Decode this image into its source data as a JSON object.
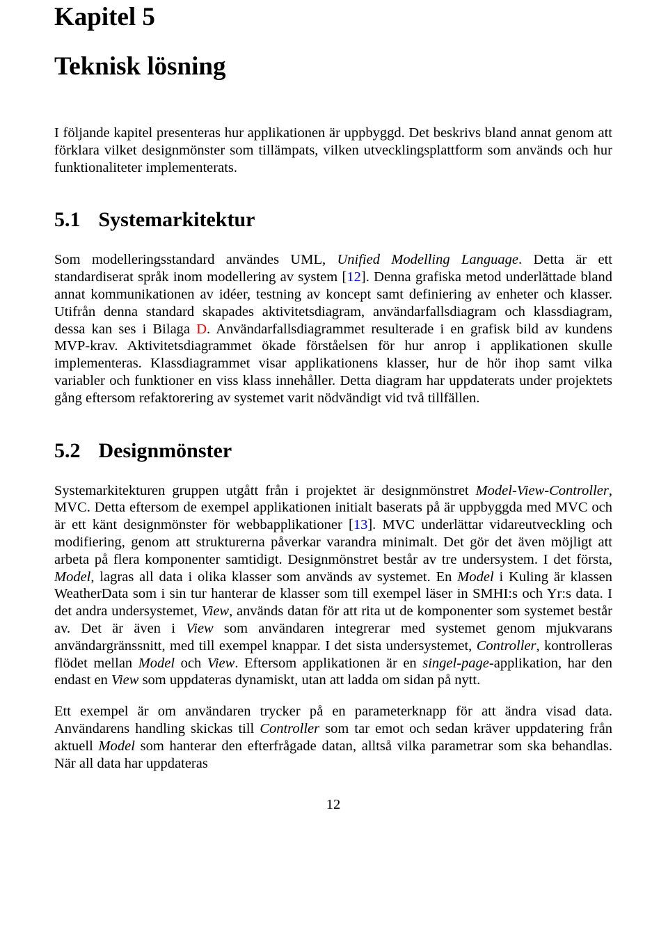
{
  "chapter": {
    "label": "Kapitel 5",
    "title": "Teknisk lösning"
  },
  "intro": {
    "pre": "I följande kapitel presenteras hur applikationen är uppbyggd. Det beskrivs bland annat genom att förklara vilket designmönster som tillämpats, vilken utvecklingsplattform som används och hur funktionaliteter implementerats."
  },
  "section1": {
    "number": "5.1",
    "title": "Systemarkitektur",
    "p_a": "Som modelleringsstandard användes UML, ",
    "p_b_term": "Unified Modelling Language",
    "p_c": ". Detta är ett standardiserat språk inom modellering av system [",
    "cite1": "12",
    "p_d": "]. Denna grafiska metod underlättade bland annat kommunikationen av idéer, testning av koncept samt definiering av enheter och klasser. Utifrån denna standard skapades aktivitetsdiagram, användarfallsdiagram och klassdiagram, dessa kan ses i Bilaga ",
    "xref1": "D",
    "p_e": ". Användarfallsdiagrammet resulterade i en grafisk bild av kundens MVP-krav. Aktivitetsdiagrammet ökade förståelsen för hur anrop i applikationen skulle implementeras. Klassdiagrammet visar applikationens klasser, hur de hör ihop samt vilka variabler och funktioner en viss klass innehåller. Detta diagram har uppdaterats under projektets gång eftersom refaktorering av systemet varit nödvändigt vid två tillfällen."
  },
  "section2": {
    "number": "5.2",
    "title": "Designmönster",
    "p1_a": "Systemarkitekturen gruppen utgått från i projektet är designmönstret ",
    "p1_term1": "Model-View-Controller",
    "p1_b": ", MVC. Detta eftersom de exempel applikationen initialt baserats på är uppbyggda med MVC och är ett känt designmönster för webbapplikationer [",
    "cite2": "13",
    "p1_c": "]. MVC underlättar vidareutveckling och modifiering, genom att strukturerna påverkar varandra minimalt. Det gör det även möjligt att arbeta på flera komponenter samtidigt. Designmönstret består av tre undersystem. I det första, ",
    "p1_term2": "Model",
    "p1_d": ", lagras all data i olika klasser som används av systemet. En ",
    "p1_term3": "Model",
    "p1_e": " i Kuling är klassen WeatherData som i sin tur hanterar de klasser som till exempel läser in SMHI:s och Yr:s data. I det andra undersystemet, ",
    "p1_term4": "View",
    "p1_f": ", används datan för att rita ut de komponenter som systemet består av. Det är även i ",
    "p1_term5": "View",
    "p1_g": " som användaren integrerar med systemet genom mjukvarans användargränssnitt, med till exempel knappar. I det sista undersystemet, ",
    "p1_term6": "Controller",
    "p1_h": ", kontrolleras flödet mellan ",
    "p1_term7": "Model",
    "p1_i": " och ",
    "p1_term8": "View",
    "p1_j": ". Eftersom applikationen är en ",
    "p1_term9": "singel-page",
    "p1_k": "-applikation, har den endast en ",
    "p1_term10": "View",
    "p1_l": " som uppdateras dynamiskt, utan att ladda om sidan på nytt.",
    "p2_a": "Ett exempel är om användaren trycker på en parameterknapp för att ändra visad data. Användarens handling skickas till ",
    "p2_term1": "Controller",
    "p2_b": " som tar emot och sedan kräver uppdatering från aktuell ",
    "p2_term2": "Model",
    "p2_c": " som hanterar den efterfrågade datan, alltså vilka parametrar som ska behandlas. När all data har uppdateras"
  },
  "page_number": "12"
}
